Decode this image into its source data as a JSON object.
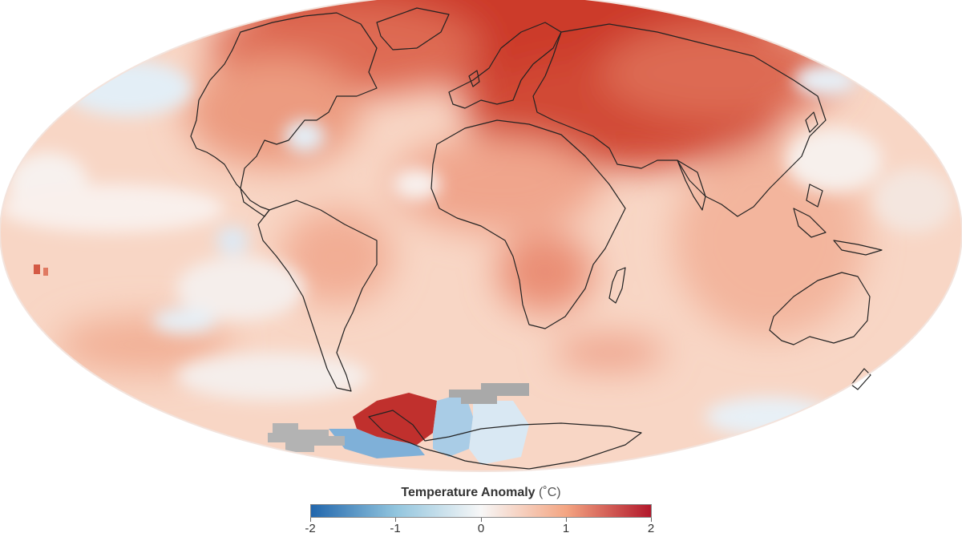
{
  "map": {
    "projection": "Mollweide (world)",
    "variable": "surface temperature anomaly",
    "missing_data_color": "#a9a9a9"
  },
  "legend": {
    "title": "Temperature Anomaly",
    "unit": "(˚C)",
    "min": -2,
    "max": 2,
    "tick_labels": [
      "-2",
      "-1",
      "0",
      "1",
      "2"
    ],
    "colors": {
      "cold_extreme": "#2166ac",
      "cold": "#92c5de",
      "neutral": "#f7f7f7",
      "warm": "#f4a582",
      "warm_extreme": "#b2182b"
    }
  }
}
